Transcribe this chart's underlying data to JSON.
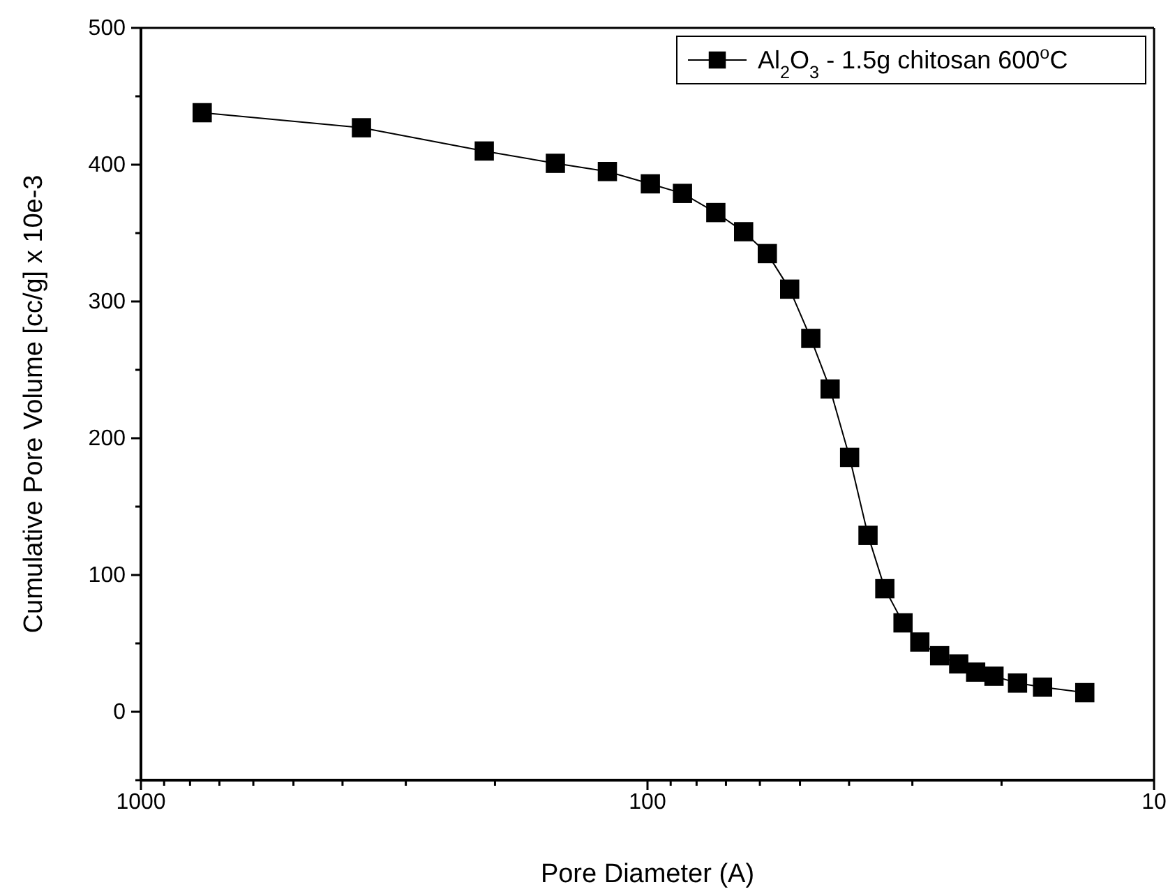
{
  "chart_data": {
    "type": "line",
    "xlabel": "Pore Diameter (A)",
    "ylabel": "Cumulative Pore Volume [cc/g] x 10e-3",
    "log": "x",
    "xlim": [
      1000,
      10
    ],
    "ylim": [
      -50,
      500
    ],
    "xticks": [
      1000,
      {
        "value": 900,
        "label": null
      },
      {
        "value": 800,
        "label": null
      },
      {
        "value": 700,
        "label": null
      },
      {
        "value": 600,
        "label": null
      },
      {
        "value": 500,
        "label": null
      },
      {
        "value": 400,
        "label": null
      },
      {
        "value": 300,
        "label": null
      },
      {
        "value": 200,
        "label": null
      },
      100,
      {
        "value": 90,
        "label": null
      },
      {
        "value": 80,
        "label": null
      },
      {
        "value": 70,
        "label": null
      },
      {
        "value": 60,
        "label": null
      },
      {
        "value": 50,
        "label": null
      },
      {
        "value": 40,
        "label": null
      },
      {
        "value": 30,
        "label": null
      },
      {
        "value": 20,
        "label": null
      },
      10
    ],
    "yticks": [
      {
        "value": -50,
        "label": null
      },
      0,
      {
        "value": 50,
        "label": null
      },
      100,
      {
        "value": 150,
        "label": null
      },
      200,
      {
        "value": 250,
        "label": null
      },
      300,
      {
        "value": 350,
        "label": null
      },
      400,
      {
        "value": 450,
        "label": null
      },
      500
    ],
    "marker": "square",
    "line_style": "solid",
    "legend": "top right",
    "grid": false,
    "series": [
      {
        "name": "Al$_{2}$O$_{3}$ - 1.5g chitosan 600$^{o}$C",
        "color": "#000000",
        "x": [
          757,
          367,
          210,
          152,
          120,
          98.7,
          85.3,
          73.3,
          64.6,
          58.0,
          52.4,
          47.6,
          43.6,
          39.9,
          36.7,
          34.0,
          31.3,
          29.0,
          26.5,
          24.3,
          22.5,
          20.7,
          18.6,
          16.6,
          13.7
        ],
        "values": [
          438,
          427,
          410,
          401,
          395,
          386,
          379,
          365,
          351,
          335,
          309,
          273,
          236,
          186,
          129,
          90,
          65,
          51,
          41,
          35,
          29,
          26,
          21,
          18,
          14
        ]
      }
    ]
  }
}
